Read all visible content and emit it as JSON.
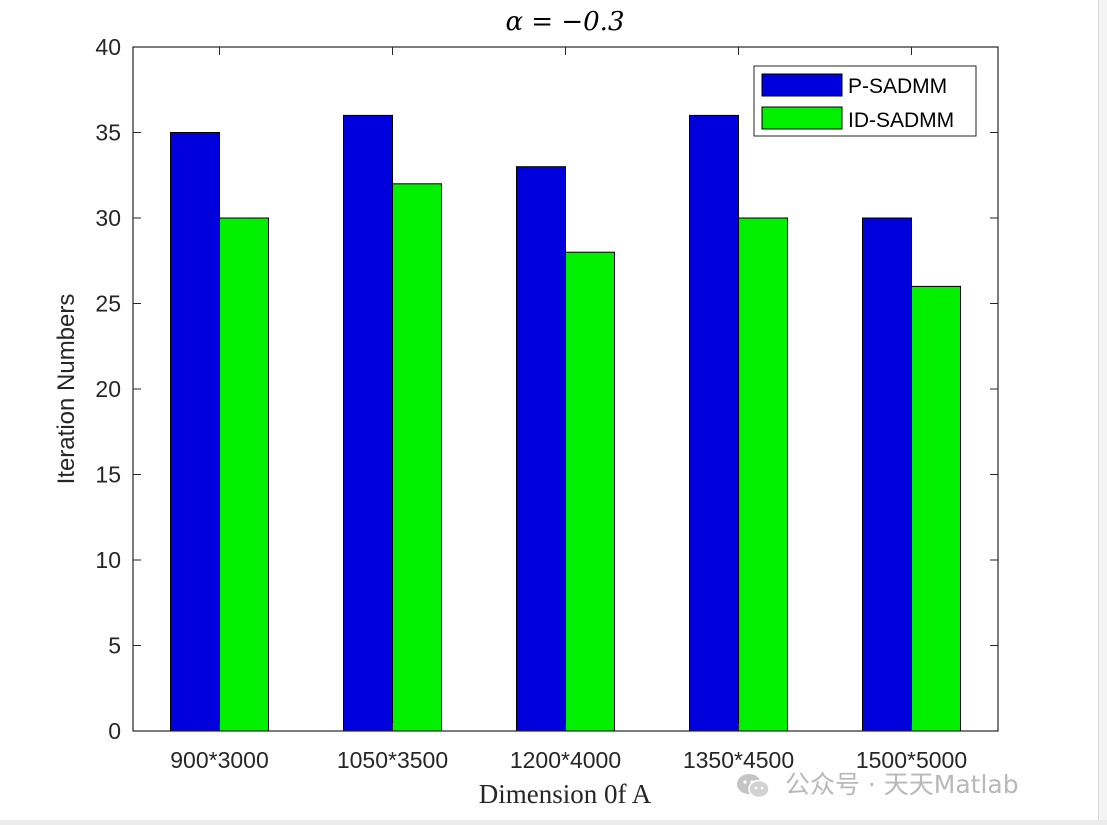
{
  "chart_data": {
    "type": "bar",
    "title": "α = −0.3",
    "xlabel": "Dimension 0f A",
    "ylabel": "Iteration Numbers",
    "categories": [
      "900*3000",
      "1050*3500",
      "1200*4000",
      "1350*4500",
      "1500*5000"
    ],
    "series": [
      {
        "name": "P-SADMM",
        "values": [
          35,
          36,
          33,
          36,
          30
        ],
        "color": "#0000DC"
      },
      {
        "name": "ID-SADMM",
        "values": [
          30,
          32,
          28,
          30,
          26
        ],
        "color": "#00F000"
      }
    ],
    "ylim": [
      0,
      40
    ],
    "yticks": [
      0,
      5,
      10,
      15,
      20,
      25,
      30,
      35,
      40
    ],
    "grid": false,
    "legend_position": "top-right"
  },
  "watermark": {
    "text": "公众号 · 天天Matlab",
    "icon": "wechat-icon"
  }
}
